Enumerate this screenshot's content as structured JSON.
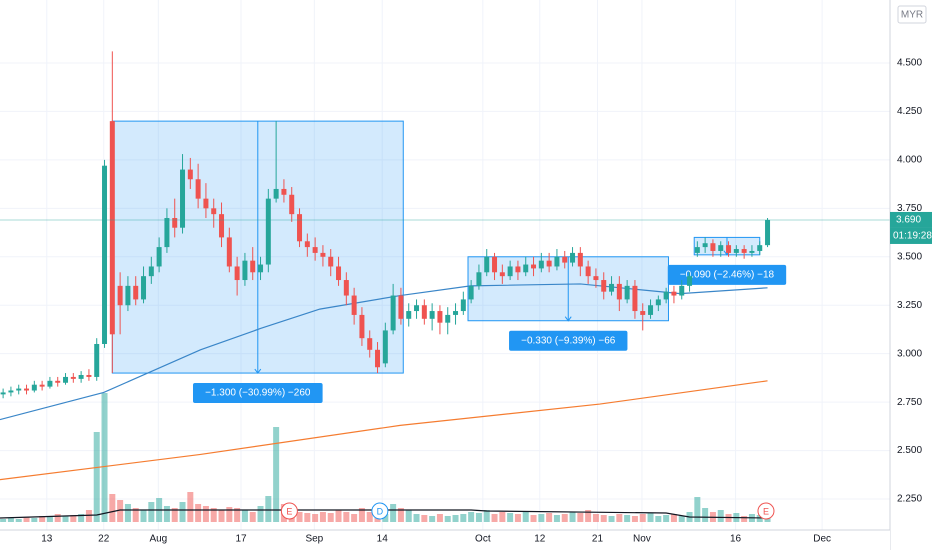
{
  "chart_data": {
    "type": "candlestick",
    "currency": "MYR",
    "xlim": [
      -0.4,
      113.7
    ],
    "ylim": [
      1.987,
      4.825
    ],
    "xticks": [
      {
        "value": 5.6,
        "label": "13"
      },
      {
        "value": 12.9,
        "label": "22"
      },
      {
        "value": 19.9,
        "label": "Aug"
      },
      {
        "value": 30.5,
        "label": "17"
      },
      {
        "value": 39.9,
        "label": "Sep"
      },
      {
        "value": 48.6,
        "label": "14"
      },
      {
        "value": 61.5,
        "label": "Oct"
      },
      {
        "value": 68.8,
        "label": "12"
      },
      {
        "value": 76.2,
        "label": "21"
      },
      {
        "value": 81.9,
        "label": "Nov"
      },
      {
        "value": 93.9,
        "label": "16"
      },
      {
        "value": 105,
        "label": "Dec"
      }
    ],
    "yticks": [
      {
        "value": 2.25,
        "label": "2.250"
      },
      {
        "value": 2.5,
        "label": "2.500"
      },
      {
        "value": 2.75,
        "label": "2.750"
      },
      {
        "value": 3,
        "label": "3.000"
      },
      {
        "value": 3.25,
        "label": "3.250"
      },
      {
        "value": 3.5,
        "label": "3.500"
      },
      {
        "value": 3.75,
        "label": "3.750"
      },
      {
        "value": 4,
        "label": "4.000"
      },
      {
        "value": 4.25,
        "label": "4.250"
      },
      {
        "value": 4.5,
        "label": "4.500"
      }
    ],
    "up_color": "#26a69a",
    "down_color": "#ef5350",
    "candles": {
      "open": [
        2.79,
        2.8,
        2.81,
        2.82,
        2.81,
        2.84,
        2.83,
        2.86,
        2.85,
        2.88,
        2.87,
        2.89,
        2.88,
        3.05,
        4.2,
        3.35,
        3.25,
        3.35,
        3.28,
        3.4,
        3.45,
        3.55,
        3.7,
        3.65,
        3.95,
        3.9,
        3.8,
        3.75,
        3.72,
        3.6,
        3.45,
        3.38,
        3.48,
        3.42,
        3.46,
        3.8,
        3.85,
        3.82,
        3.72,
        3.58,
        3.55,
        3.52,
        3.5,
        3.45,
        3.38,
        3.3,
        3.2,
        3.08,
        3.02,
        2.95,
        3.12,
        3.3,
        3.18,
        3.22,
        3.25,
        3.18,
        3.22,
        3.16,
        3.2,
        3.22,
        3.28,
        3.35,
        3.42,
        3.5,
        3.42,
        3.4,
        3.45,
        3.42,
        3.46,
        3.44,
        3.48,
        3.45,
        3.5,
        3.47,
        3.52,
        3.45,
        3.4,
        3.38,
        3.32,
        3.36,
        3.28,
        3.35,
        3.22,
        3.2,
        3.25,
        3.28,
        3.32,
        3.3,
        3.35,
        3.52,
        3.55,
        3.57,
        3.53,
        3.56,
        3.52,
        3.54,
        3.52,
        3.53,
        3.56
      ],
      "high": [
        2.82,
        2.83,
        2.84,
        2.84,
        2.86,
        2.86,
        2.88,
        2.88,
        2.9,
        2.9,
        2.91,
        2.92,
        3.08,
        4.0,
        4.56,
        3.42,
        3.4,
        3.4,
        3.45,
        3.5,
        3.6,
        3.75,
        3.8,
        4.03,
        4.01,
        3.98,
        3.88,
        3.8,
        3.78,
        3.65,
        3.5,
        3.52,
        3.55,
        3.5,
        3.85,
        4.2,
        3.9,
        3.86,
        3.75,
        3.62,
        3.6,
        3.56,
        3.54,
        3.5,
        3.42,
        3.34,
        3.24,
        3.12,
        3.06,
        3.16,
        3.36,
        3.34,
        3.26,
        3.28,
        3.28,
        3.26,
        3.25,
        3.24,
        3.26,
        3.32,
        3.38,
        3.46,
        3.54,
        3.52,
        3.46,
        3.48,
        3.48,
        3.5,
        3.5,
        3.52,
        3.52,
        3.54,
        3.53,
        3.55,
        3.55,
        3.48,
        3.44,
        3.42,
        3.4,
        3.4,
        3.38,
        3.38,
        3.26,
        3.28,
        3.3,
        3.34,
        3.35,
        3.38,
        3.42,
        3.58,
        3.6,
        3.59,
        3.58,
        3.58,
        3.56,
        3.56,
        3.56,
        3.58,
        3.7
      ],
      "low": [
        2.77,
        2.78,
        2.79,
        2.79,
        2.8,
        2.81,
        2.82,
        2.83,
        2.84,
        2.85,
        2.85,
        2.86,
        2.86,
        3.03,
        2.9,
        3.1,
        3.22,
        3.25,
        3.26,
        3.36,
        3.42,
        3.52,
        3.6,
        3.62,
        3.85,
        3.75,
        3.7,
        3.65,
        3.55,
        3.42,
        3.3,
        3.35,
        3.38,
        3.38,
        3.42,
        3.78,
        3.78,
        3.68,
        3.55,
        3.5,
        3.48,
        3.45,
        3.4,
        3.35,
        3.25,
        3.15,
        3.04,
        2.98,
        2.9,
        2.93,
        3.1,
        3.15,
        3.14,
        3.18,
        3.15,
        3.12,
        3.1,
        3.1,
        3.15,
        3.2,
        3.26,
        3.33,
        3.4,
        3.38,
        3.36,
        3.38,
        3.38,
        3.4,
        3.4,
        3.42,
        3.42,
        3.43,
        3.44,
        3.45,
        3.4,
        3.36,
        3.34,
        3.28,
        3.3,
        3.22,
        3.26,
        3.18,
        3.12,
        3.18,
        3.22,
        3.26,
        3.26,
        3.28,
        3.32,
        3.5,
        3.52,
        3.5,
        3.5,
        3.5,
        3.5,
        3.49,
        3.5,
        3.51,
        3.55
      ],
      "close": [
        2.8,
        2.81,
        2.82,
        2.81,
        2.84,
        2.83,
        2.86,
        2.85,
        2.88,
        2.87,
        2.89,
        2.88,
        3.05,
        3.97,
        3.1,
        3.25,
        3.35,
        3.28,
        3.4,
        3.45,
        3.55,
        3.7,
        3.65,
        3.95,
        3.9,
        3.8,
        3.75,
        3.72,
        3.6,
        3.45,
        3.38,
        3.48,
        3.42,
        3.46,
        3.8,
        3.85,
        3.82,
        3.72,
        3.58,
        3.55,
        3.52,
        3.5,
        3.45,
        3.38,
        3.3,
        3.2,
        3.08,
        3.02,
        2.93,
        3.12,
        3.3,
        3.18,
        3.22,
        3.25,
        3.18,
        3.22,
        3.16,
        3.2,
        3.22,
        3.28,
        3.35,
        3.42,
        3.5,
        3.42,
        3.4,
        3.45,
        3.42,
        3.46,
        3.44,
        3.48,
        3.45,
        3.5,
        3.47,
        3.52,
        3.45,
        3.4,
        3.38,
        3.32,
        3.36,
        3.28,
        3.35,
        3.22,
        3.2,
        3.25,
        3.28,
        3.32,
        3.3,
        3.35,
        3.4,
        3.55,
        3.57,
        3.53,
        3.56,
        3.52,
        3.54,
        3.52,
        3.53,
        3.56,
        3.69
      ]
    },
    "volume": {
      "values": [
        3,
        4,
        3,
        5,
        4,
        6,
        5,
        8,
        6,
        7,
        8,
        12,
        90,
        129,
        28,
        22,
        18,
        14,
        12,
        20,
        24,
        16,
        14,
        20,
        30,
        18,
        16,
        14,
        12,
        15,
        14,
        12,
        10,
        16,
        26,
        95,
        18,
        12,
        10,
        9,
        8,
        10,
        9,
        12,
        10,
        8,
        14,
        10,
        12,
        8,
        18,
        14,
        12,
        8,
        7,
        6,
        8,
        6,
        7,
        8,
        10,
        9,
        12,
        8,
        10,
        9,
        8,
        10,
        7,
        8,
        9,
        7,
        8,
        10,
        9,
        12,
        8,
        7,
        6,
        8,
        7,
        6,
        8,
        9,
        6,
        7,
        8,
        6,
        10,
        25,
        14,
        10,
        12,
        8,
        9,
        6,
        8,
        7,
        8
      ],
      "ma": {
        "color": "#131722",
        "x": [
          -0.4,
          12,
          15,
          35,
          60,
          62,
          85,
          88,
          98
        ],
        "values": [
          4,
          7,
          12,
          12,
          12,
          11,
          9,
          5,
          4
        ]
      }
    },
    "lines": [
      {
        "color": "#3a86c8",
        "x": [
          -0.4,
          12.9,
          25.3,
          33,
          40.6,
          50.9,
          59.9,
          74,
          86.8,
          98
        ],
        "values": [
          2.66,
          2.8,
          3.02,
          3.13,
          3.23,
          3.3,
          3.35,
          3.36,
          3.31,
          3.34
        ]
      },
      {
        "color": "#f57c30",
        "x": [
          -0.4,
          25.3,
          50.9,
          76.5,
          98
        ],
        "values": [
          2.35,
          2.48,
          2.63,
          2.74,
          2.86
        ]
      }
    ],
    "measures": [
      {
        "x0": 14,
        "x1": 51.3,
        "top": 4.2,
        "bottom": 2.9,
        "label": "−1.300 (−30.99%) −260"
      },
      {
        "x0": 59.6,
        "x1": 85.3,
        "top": 3.5,
        "bottom": 3.17,
        "label": "−0.330 (−9.39%) −66"
      },
      {
        "x0": 88.6,
        "x1": 97,
        "top": 3.6,
        "bottom": 3.51,
        "label": "−0.090 (−2.46%) −18"
      }
    ],
    "events": [
      {
        "label": "E",
        "x": 36.7,
        "color": "#ef5350"
      },
      {
        "label": "D",
        "x": 48.3,
        "color": "#2196f3"
      },
      {
        "label": "E",
        "x": 97.8,
        "color": "#ef5350"
      }
    ],
    "last_price": {
      "value": 3.69,
      "label": "3.690",
      "countdown": "01:19:28"
    }
  }
}
